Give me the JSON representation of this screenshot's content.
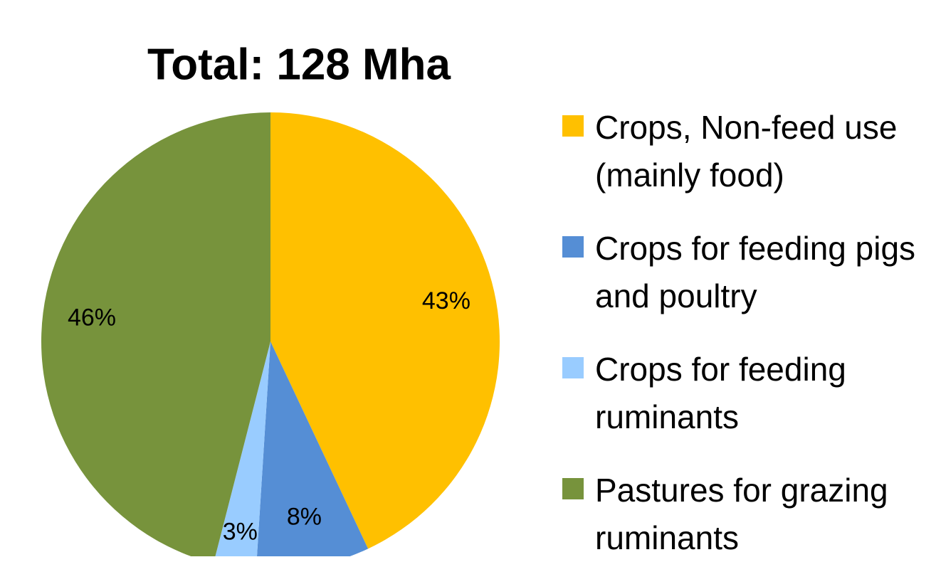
{
  "chart_data": {
    "type": "pie",
    "title": "Total: 128 Mha",
    "categories": [
      "Crops, Non-feed use (mainly food)",
      "Crops for feeding pigs and poultry",
      "Crops for feeding ruminants",
      "Pastures for grazing ruminants"
    ],
    "values": [
      43,
      8,
      3,
      46
    ],
    "value_labels": [
      "43%",
      "8%",
      "3%",
      "46%"
    ],
    "colors": [
      "#ffc000",
      "#558ed5",
      "#99ccff",
      "#77933c"
    ]
  }
}
